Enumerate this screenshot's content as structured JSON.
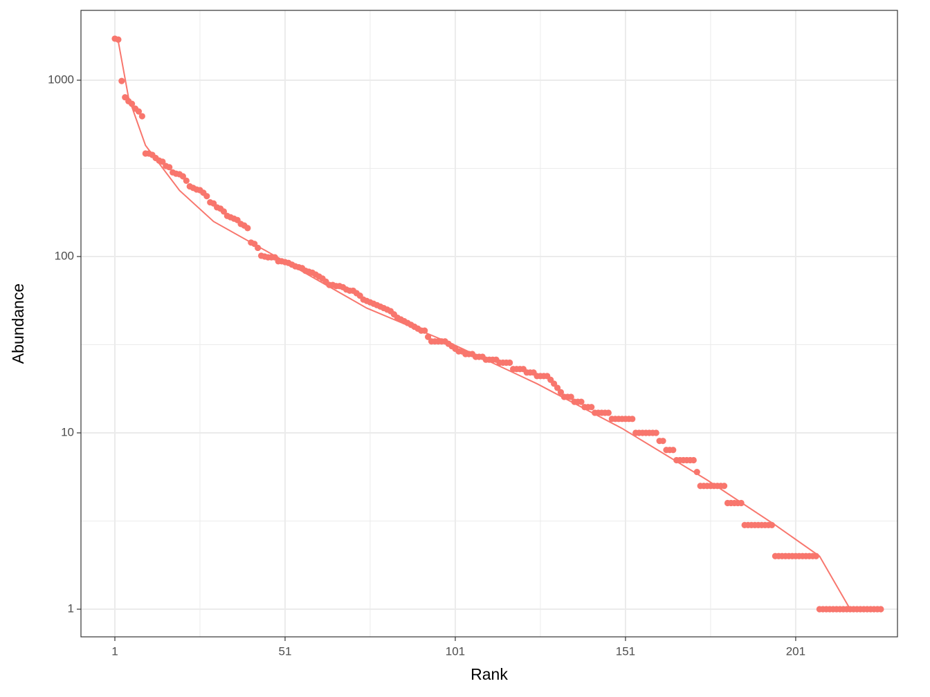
{
  "chart_data": {
    "type": "scatter",
    "x_label": "Rank",
    "y_label": "Abundance",
    "xlim": [
      -8.96,
      230.9
    ],
    "ylim": [
      0.697,
      2489
    ],
    "y_scale": "log",
    "xticks": [
      1,
      51,
      101,
      151,
      201
    ],
    "yticks": [
      1,
      10,
      100,
      1000
    ],
    "xminor": [
      26,
      76,
      126,
      176
    ],
    "yminor": [
      3.162,
      31.62,
      316.2
    ],
    "grid": true,
    "series": [
      {
        "kind": "points",
        "color": "#F8766D",
        "x": [
          1,
          2,
          3,
          4,
          5,
          6,
          7,
          8,
          9,
          10,
          11,
          12,
          13,
          14,
          15,
          16,
          17,
          18,
          19,
          20,
          21,
          22,
          23,
          24,
          25,
          26,
          27,
          28,
          29,
          30,
          31,
          32,
          33,
          34,
          35,
          36,
          37,
          38,
          39,
          40,
          41,
          42,
          43,
          44,
          45,
          46,
          47,
          48,
          49,
          50,
          51,
          52,
          53,
          54,
          55,
          56,
          57,
          58,
          59,
          60,
          61,
          62,
          63,
          64,
          65,
          66,
          67,
          68,
          69,
          70,
          71,
          72,
          73,
          74,
          75,
          76,
          77,
          78,
          79,
          80,
          81,
          82,
          83,
          84,
          85,
          86,
          87,
          88,
          89,
          90,
          91,
          92,
          93,
          94,
          95,
          96,
          97,
          98,
          99,
          100,
          101,
          102,
          103,
          104,
          105,
          106,
          107,
          108,
          109,
          110,
          111,
          112,
          113,
          114,
          115,
          116,
          117,
          118,
          119,
          120,
          121,
          122,
          123,
          124,
          125,
          126,
          127,
          128,
          129,
          130,
          131,
          132,
          133,
          134,
          135,
          136,
          137,
          138,
          139,
          140,
          141,
          142,
          143,
          144,
          145,
          146,
          147,
          148,
          149,
          150,
          151,
          152,
          153,
          154,
          155,
          156,
          157,
          158,
          159,
          160,
          161,
          162,
          163,
          164,
          165,
          166,
          167,
          168,
          169,
          170,
          171,
          172,
          173,
          174,
          175,
          176,
          177,
          178,
          179,
          180,
          181,
          182,
          183,
          184,
          185,
          186,
          187,
          188,
          189,
          190,
          191,
          192,
          193,
          194,
          195,
          196,
          197,
          198,
          199,
          200,
          201,
          202,
          203,
          204,
          205,
          206,
          207,
          208,
          209,
          210,
          211,
          212,
          213,
          214,
          215,
          216,
          217,
          218,
          219,
          220,
          221,
          222,
          223,
          224,
          225,
          226
        ],
        "values": [
          1720,
          1700,
          990,
          800,
          760,
          735,
          690,
          665,
          625,
          384,
          384,
          377,
          362,
          350,
          345,
          326,
          321,
          300,
          295,
          293,
          285,
          269,
          250,
          245,
          240,
          238,
          230,
          220,
          203,
          200,
          190,
          187,
          180,
          170,
          167,
          164,
          161,
          153,
          150,
          145,
          120,
          118,
          112,
          101,
          100,
          99,
          99,
          99,
          94,
          94,
          93,
          92,
          90,
          88,
          87,
          86,
          83,
          82,
          81,
          79,
          77,
          75,
          72,
          69,
          69,
          68,
          68,
          67,
          65,
          64,
          64,
          62,
          60,
          57,
          56,
          55,
          54,
          53,
          52,
          51,
          50,
          49,
          47,
          45,
          44,
          43,
          42,
          41,
          40,
          39,
          38,
          38,
          35,
          33,
          33,
          33,
          33,
          33,
          32,
          31,
          30,
          29,
          29,
          28,
          28,
          28,
          27,
          27,
          27,
          26,
          26,
          26,
          26,
          25,
          25,
          25,
          25,
          23,
          23,
          23,
          23,
          22,
          22,
          22,
          21,
          21,
          21,
          21,
          20,
          19,
          18,
          17,
          16,
          16,
          16,
          15,
          15,
          15,
          14,
          14,
          14,
          13,
          13,
          13,
          13,
          13,
          12,
          12,
          12,
          12,
          12,
          12,
          12,
          10,
          10,
          10,
          10,
          10,
          10,
          10,
          9,
          9,
          8,
          8,
          8,
          7,
          7,
          7,
          7,
          7,
          7,
          6,
          5,
          5,
          5,
          5,
          5,
          5,
          5,
          5,
          4,
          4,
          4,
          4,
          4,
          3,
          3,
          3,
          3,
          3,
          3,
          3,
          3,
          3,
          2,
          2,
          2,
          2,
          2,
          2,
          2,
          2,
          2,
          2,
          2,
          2,
          2,
          1,
          1,
          1,
          1,
          1,
          1,
          1,
          1,
          1,
          1,
          1,
          1,
          1,
          1,
          1,
          1,
          1,
          1,
          1
        ]
      },
      {
        "kind": "line",
        "color": "#F8766D",
        "x": [
          1,
          2,
          5,
          10,
          20,
          30,
          50,
          75,
          100,
          125,
          150,
          175,
          195,
          208,
          217
        ],
        "values": [
          1700,
          1660,
          800,
          427,
          237,
          158,
          96,
          51,
          32,
          19,
          10.6,
          5.4,
          3,
          2,
          1
        ]
      }
    ]
  }
}
